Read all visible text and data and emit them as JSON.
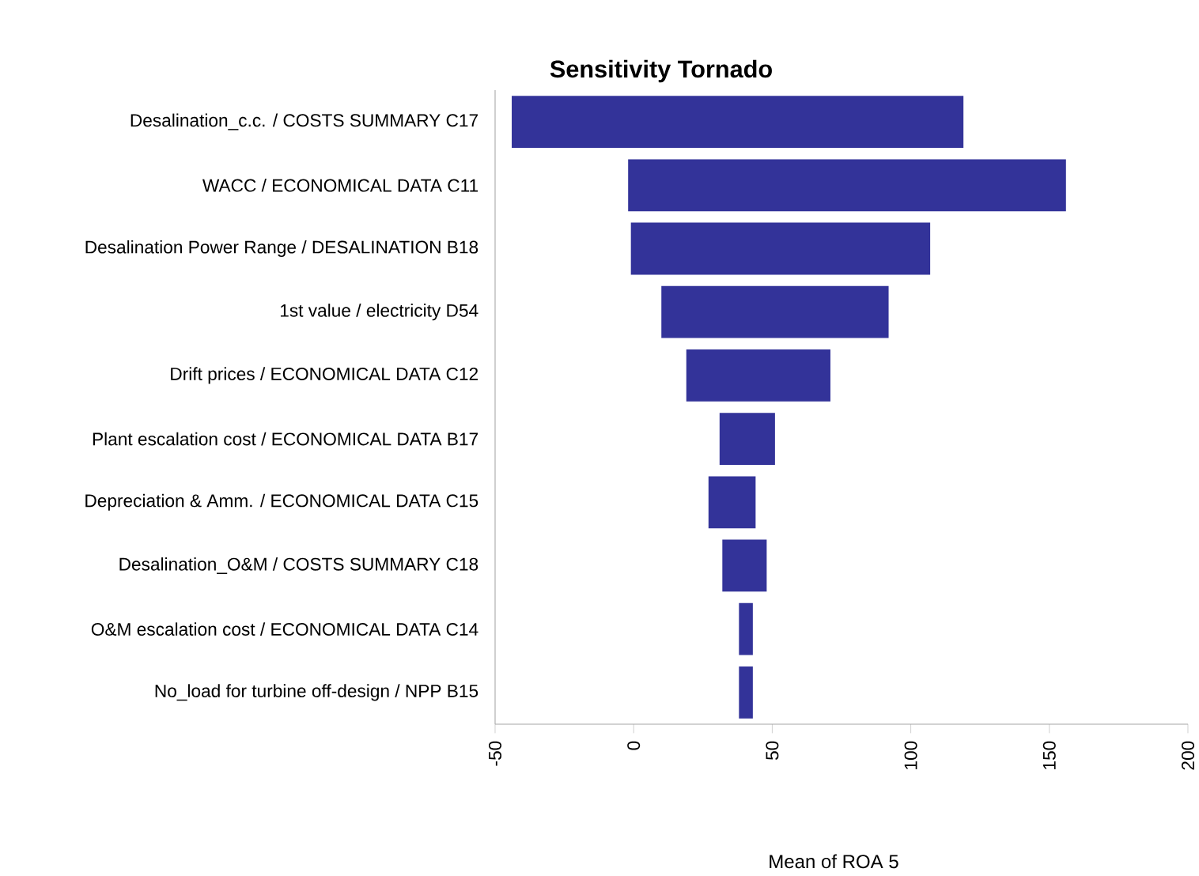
{
  "chart_data": {
    "type": "bar",
    "orientation": "horizontal",
    "title": "Sensitivity Tornado",
    "xlabel": "Mean of ROA 5",
    "categories": [
      "Desalination_c.c. / COSTS SUMMARY C17",
      "WACC / ECONOMICAL DATA C11",
      "Desalination Power Range / DESALINATION B18",
      "1st value / electricity D54",
      "Drift prices / ECONOMICAL DATA C12",
      "Plant escalation cost / ECONOMICAL DATA B17",
      "Depreciation & Amm. / ECONOMICAL DATA C15",
      "Desalination_O&M / COSTS SUMMARY C18",
      "O&M escalation cost / ECONOMICAL DATA C14",
      "No_load for turbine off-design / NPP B15"
    ],
    "base": [
      -44,
      -2,
      -1,
      10,
      19,
      31,
      27,
      32,
      38,
      38
    ],
    "values": [
      163,
      158,
      108,
      82,
      52,
      20,
      17,
      16,
      5,
      5
    ],
    "color": "#333399",
    "xlim": [
      -50,
      200
    ],
    "xticks": [
      -50,
      0,
      50,
      100,
      150,
      200
    ],
    "grid": false
  }
}
